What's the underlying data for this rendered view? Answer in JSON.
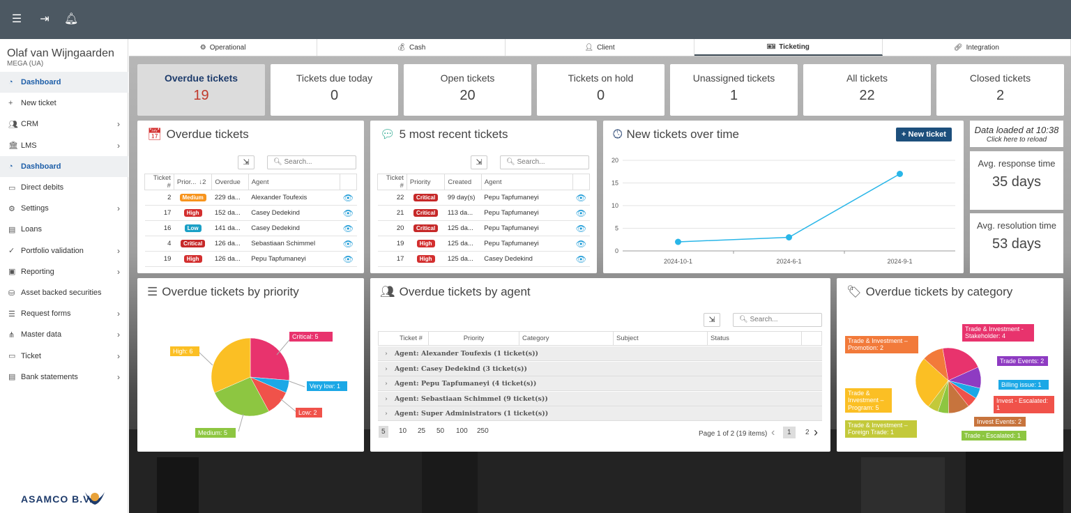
{
  "user": {
    "name": "Olaf van Wijngaarden",
    "org": "MEGA (UA)"
  },
  "sidebar": {
    "items": [
      {
        "label": "Dashboard",
        "icon": "dashboard-icon",
        "active": true
      },
      {
        "label": "New ticket",
        "icon": "plus-icon"
      },
      {
        "label": "CRM",
        "icon": "users-icon",
        "chevron": true
      },
      {
        "label": "LMS",
        "icon": "bank-icon",
        "chevron": true
      },
      {
        "label": "Dashboard",
        "icon": "dashboard-icon",
        "active": true
      },
      {
        "label": "Direct debits",
        "icon": "card-icon"
      },
      {
        "label": "Settings",
        "icon": "gear-icon",
        "chevron": true
      },
      {
        "label": "Loans",
        "icon": "loan-icon"
      },
      {
        "label": "Portfolio validation",
        "icon": "check-icon",
        "chevron": true
      },
      {
        "label": "Reporting",
        "icon": "report-icon",
        "chevron": true
      },
      {
        "label": "Asset backed securities",
        "icon": "asset-icon"
      },
      {
        "label": "Request forms",
        "icon": "form-icon",
        "chevron": true
      },
      {
        "label": "Master data",
        "icon": "sitemap-icon",
        "chevron": true
      },
      {
        "label": "Ticket",
        "icon": "ticket-icon",
        "chevron": true
      },
      {
        "label": "Bank statements",
        "icon": "statement-icon",
        "chevron": true
      }
    ],
    "logo": "ASAMCO B.V."
  },
  "tabs": [
    {
      "label": "Operational"
    },
    {
      "label": "Cash"
    },
    {
      "label": "Client"
    },
    {
      "label": "Ticketing",
      "active": true
    },
    {
      "label": "Integration"
    }
  ],
  "stats": [
    {
      "label": "Overdue tickets",
      "value": "19",
      "active": true
    },
    {
      "label": "Tickets due today",
      "value": "0"
    },
    {
      "label": "Open tickets",
      "value": "20"
    },
    {
      "label": "Tickets on hold",
      "value": "0"
    },
    {
      "label": "Unassigned tickets",
      "value": "1"
    },
    {
      "label": "All tickets",
      "value": "22"
    },
    {
      "label": "Closed tickets",
      "value": "2"
    }
  ],
  "overdue": {
    "title": "Overdue tickets",
    "search_placeholder": "Search...",
    "columns": [
      "Ticket #",
      "Prior...",
      "Overdue",
      "Agent"
    ],
    "sort_indicator": "↓2",
    "rows": [
      {
        "ticket": "2",
        "priority": "Medium",
        "overdue": "229 da...",
        "agent": "Alexander Toufexis"
      },
      {
        "ticket": "17",
        "priority": "High",
        "overdue": "152 da...",
        "agent": "Casey Dedekind"
      },
      {
        "ticket": "16",
        "priority": "Low",
        "overdue": "141 da...",
        "agent": "Casey Dedekind"
      },
      {
        "ticket": "4",
        "priority": "Critical",
        "overdue": "126 da...",
        "agent": "Sebastiaan Schimmel"
      },
      {
        "ticket": "19",
        "priority": "High",
        "overdue": "126 da...",
        "agent": "Pepu Tapfumaneyi"
      }
    ]
  },
  "recent": {
    "title": "5 most recent tickets",
    "search_placeholder": "Search...",
    "columns": [
      "Ticket #",
      "Priority",
      "Created",
      "Agent"
    ],
    "rows": [
      {
        "ticket": "22",
        "priority": "Critical",
        "created": "99 day(s)",
        "agent": "Pepu Tapfumaneyi"
      },
      {
        "ticket": "21",
        "priority": "Critical",
        "created": "113 da...",
        "agent": "Pepu Tapfumaneyi"
      },
      {
        "ticket": "20",
        "priority": "Critical",
        "created": "125 da...",
        "agent": "Pepu Tapfumaneyi"
      },
      {
        "ticket": "19",
        "priority": "High",
        "created": "125 da...",
        "agent": "Pepu Tapfumaneyi"
      },
      {
        "ticket": "17",
        "priority": "High",
        "created": "125 da...",
        "agent": "Casey Dedekind"
      }
    ]
  },
  "timechart": {
    "title": "New tickets over time",
    "button": "+ New ticket"
  },
  "loaded": {
    "line1": "Data loaded at 10:38",
    "line2": "Click here to reload"
  },
  "response": {
    "label": "Avg. response time",
    "value": "35 days"
  },
  "resolution": {
    "label": "Avg. resolution time",
    "value": "53 days"
  },
  "priority_card": {
    "title": "Overdue tickets by priority"
  },
  "agent_card": {
    "title": "Overdue tickets by agent",
    "search_placeholder": "Search...",
    "columns": [
      "Ticket #",
      "Priority",
      "Category",
      "Subject",
      "Status"
    ],
    "groups": [
      "Agent: Alexander Toufexis (1 ticket(s))",
      "Agent: Casey Dedekind (3 ticket(s))",
      "Agent: Pepu Tapfumaneyi (4 ticket(s))",
      "Agent: Sebastiaan Schimmel (9 ticket(s))",
      "Agent: Super Administrators (1 ticket(s))"
    ],
    "page_sizes": [
      "5",
      "10",
      "25",
      "50",
      "100",
      "250"
    ],
    "page_info": "Page 1 of 2 (19 items)",
    "pages": [
      "1",
      "2"
    ]
  },
  "category_card": {
    "title": "Overdue tickets by category"
  },
  "priority_colors": {
    "Medium": "#f7941d",
    "High": "#d32f2f",
    "Low": "#1ba0c6",
    "Critical": "#c62828"
  },
  "chart_data": [
    {
      "type": "line",
      "x": [
        "2024-10-1",
        "2024-6-1",
        "2024-9-1"
      ],
      "values": [
        2,
        3,
        17
      ],
      "ylim": [
        0,
        20
      ],
      "yticks": [
        0,
        5,
        10,
        15,
        20
      ],
      "grid": true,
      "color": "#29b6e8"
    },
    {
      "type": "pie",
      "labels": [
        "Critical",
        "Very low",
        "Low",
        "Medium",
        "High"
      ],
      "values": [
        5,
        1,
        2,
        5,
        6
      ],
      "colors": [
        "#e8336d",
        "#1ba8e6",
        "#f0524a",
        "#8dc641",
        "#fbbf24"
      ],
      "label_texts": [
        "Critical: 5",
        "Very low: 1",
        "Low: 2",
        "Medium: 5",
        "High: 6"
      ]
    },
    {
      "type": "pie",
      "labels": [
        "Trade & Investment - Stakeholder",
        "Trade Events",
        "Billing issue",
        "Invest - Escalated",
        "Invest Events",
        "Trade - Escalated",
        "Trade & Investment – Foreign Trade",
        "Trade & Investment – Program",
        "Trade & Investment – Promotion"
      ],
      "values": [
        4,
        2,
        1,
        1,
        2,
        1,
        1,
        5,
        2
      ],
      "colors": [
        "#e8336d",
        "#8e3bc2",
        "#1ba8e6",
        "#f0524a",
        "#c7743d",
        "#8dc641",
        "#c3c93a",
        "#fbbf24",
        "#f27a3a"
      ],
      "label_texts": [
        "Trade & Investment - Stakeholder: 4",
        "Trade Events: 2",
        "Billing issue: 1",
        "Invest - Escalated: 1",
        "Invest Events: 2",
        "Trade - Escalated: 1",
        "Trade & Investment – Foreign Trade: 1",
        "Trade & Investment – Program: 5",
        "Trade & Investment – Promotion: 2"
      ]
    }
  ]
}
